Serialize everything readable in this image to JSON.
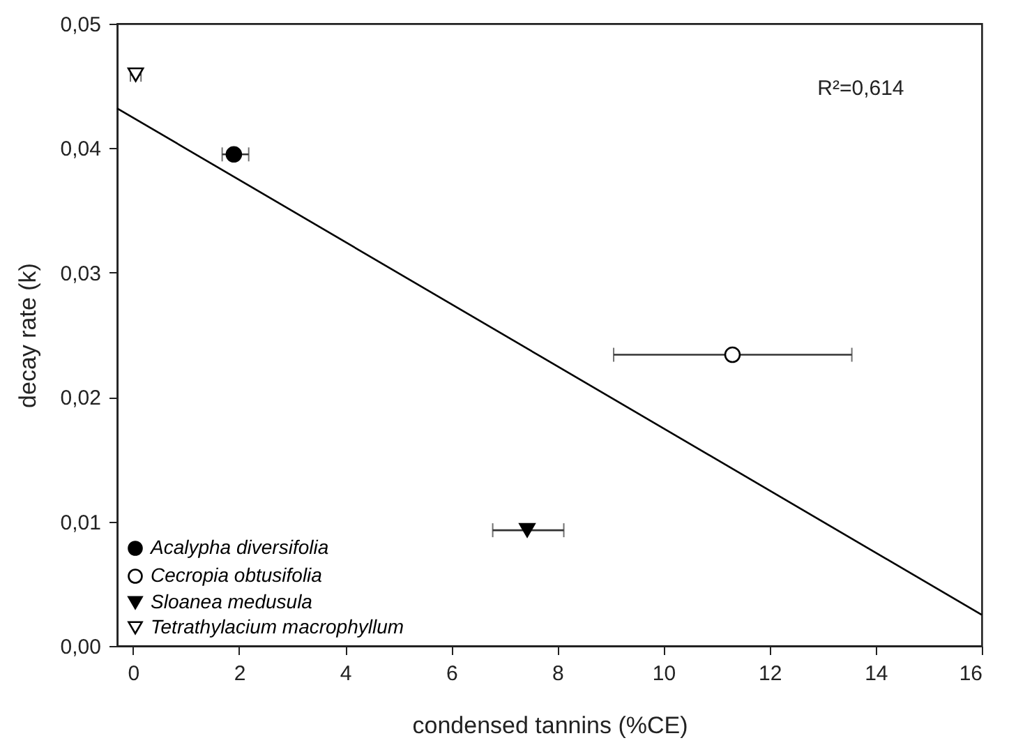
{
  "chart_data": {
    "type": "scatter",
    "xlabel": "condensed tannins (%CE)",
    "ylabel": "decay rate (k)",
    "xlim": [
      -0.3,
      16
    ],
    "xticks": [
      0,
      2,
      4,
      6,
      8,
      10,
      12,
      14,
      16
    ],
    "ylim": [
      0,
      0.05
    ],
    "yticks": [
      {
        "value": 0,
        "label": "0,00"
      },
      {
        "value": 0.01,
        "label": "0,01"
      },
      {
        "value": 0.02,
        "label": "0,02"
      },
      {
        "value": 0.03,
        "label": "0,03"
      },
      {
        "value": 0.04,
        "label": "0,04"
      },
      {
        "value": 0.05,
        "label": "0,05"
      }
    ],
    "grid": false,
    "legend": "bottom left",
    "annotations": [
      "R²=0,614"
    ],
    "series": [
      {
        "name": "Acalypha diversifolia",
        "color": "#000000",
        "marker": "circle",
        "x": [
          1.9
        ],
        "values": [
          0.0395
        ],
        "xerrors": [
          [
            1.68,
            2.18
          ]
        ]
      },
      {
        "name": "Cecropia obtusifolia",
        "color": "#ffffff",
        "marker": "circle",
        "x": [
          11.3
        ],
        "values": [
          0.0234
        ],
        "xerrors": [
          [
            9.06,
            13.55
          ]
        ]
      },
      {
        "name": "Sloanea medusula",
        "color": "#000000",
        "marker": "triangle",
        "x": [
          7.43
        ],
        "values": [
          0.0093
        ],
        "xerrors": [
          [
            6.78,
            8.12
          ]
        ]
      },
      {
        "name": "Tetrathylacium macrophyllum",
        "color": "#ffffff",
        "marker": "triangle",
        "x": [
          0.05
        ],
        "values": [
          0.0459
        ],
        "xerrors": [
          [
            -0.05,
            0.15
          ]
        ]
      },
      {
        "type": "line",
        "color": "#000000",
        "x": [
          -0.3,
          16
        ],
        "values": [
          0.0432,
          0.0025
        ]
      }
    ]
  }
}
